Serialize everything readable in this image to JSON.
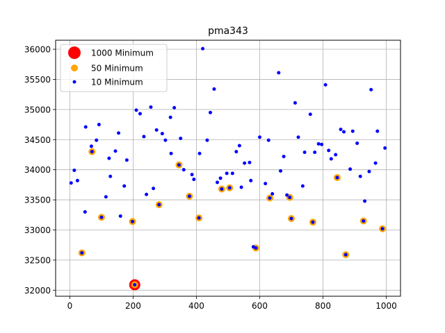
{
  "colors": {
    "min1000": "#ff0000",
    "min50": "#ffa500",
    "min10": "#0000ff",
    "grid": "#b0b0b0"
  },
  "chart_data": {
    "type": "scatter",
    "title": "pma343",
    "xlabel": "",
    "ylabel": "",
    "xlim": [
      -45,
      1045
    ],
    "ylim": [
      31900,
      36150
    ],
    "xticks": [
      0,
      200,
      400,
      600,
      800,
      1000
    ],
    "yticks": [
      32000,
      32500,
      33000,
      33500,
      34000,
      34500,
      35000,
      35500,
      36000
    ],
    "grid": true,
    "legend": "top-left",
    "series": [
      {
        "name": "1000 Minimum",
        "color": "#ff0000",
        "marker_size": "large",
        "points": [
          [
            205,
            32090
          ]
        ]
      },
      {
        "name": "50 Minimum",
        "color": "#ffa500",
        "marker_size": "medium",
        "points": [
          [
            38,
            32620
          ],
          [
            70,
            34300
          ],
          [
            100,
            33210
          ],
          [
            198,
            33140
          ],
          [
            205,
            32090
          ],
          [
            282,
            33420
          ],
          [
            345,
            34080
          ],
          [
            378,
            33560
          ],
          [
            408,
            33200
          ],
          [
            480,
            33680
          ],
          [
            505,
            33700
          ],
          [
            588,
            32700
          ],
          [
            632,
            33530
          ],
          [
            695,
            33540
          ],
          [
            700,
            33190
          ],
          [
            768,
            33130
          ],
          [
            845,
            33870
          ],
          [
            872,
            32590
          ],
          [
            928,
            33150
          ],
          [
            988,
            33020
          ]
        ]
      },
      {
        "name": "10 Minimum",
        "color": "#0000ff",
        "marker_size": "small",
        "points": [
          [
            4,
            33780
          ],
          [
            14,
            33990
          ],
          [
            24,
            33820
          ],
          [
            38,
            32620
          ],
          [
            48,
            33300
          ],
          [
            50,
            34710
          ],
          [
            68,
            34390
          ],
          [
            70,
            34300
          ],
          [
            84,
            34490
          ],
          [
            92,
            34750
          ],
          [
            100,
            33210
          ],
          [
            114,
            33550
          ],
          [
            124,
            34190
          ],
          [
            128,
            33890
          ],
          [
            144,
            34310
          ],
          [
            154,
            34610
          ],
          [
            160,
            33230
          ],
          [
            172,
            33730
          ],
          [
            180,
            34160
          ],
          [
            198,
            33140
          ],
          [
            205,
            32090
          ],
          [
            210,
            34990
          ],
          [
            222,
            34930
          ],
          [
            234,
            34550
          ],
          [
            242,
            33590
          ],
          [
            256,
            35040
          ],
          [
            264,
            33690
          ],
          [
            274,
            34660
          ],
          [
            282,
            33420
          ],
          [
            292,
            34600
          ],
          [
            302,
            34490
          ],
          [
            318,
            34870
          ],
          [
            320,
            34270
          ],
          [
            330,
            35030
          ],
          [
            345,
            34080
          ],
          [
            350,
            34520
          ],
          [
            360,
            34000
          ],
          [
            378,
            33560
          ],
          [
            386,
            33920
          ],
          [
            392,
            33840
          ],
          [
            408,
            33200
          ],
          [
            410,
            34270
          ],
          [
            420,
            36010
          ],
          [
            434,
            34490
          ],
          [
            444,
            34950
          ],
          [
            456,
            35340
          ],
          [
            466,
            33790
          ],
          [
            476,
            33860
          ],
          [
            480,
            33680
          ],
          [
            496,
            33940
          ],
          [
            505,
            33700
          ],
          [
            514,
            33940
          ],
          [
            526,
            34300
          ],
          [
            536,
            34400
          ],
          [
            542,
            33710
          ],
          [
            552,
            34110
          ],
          [
            568,
            34120
          ],
          [
            572,
            33820
          ],
          [
            580,
            32720
          ],
          [
            588,
            32700
          ],
          [
            600,
            34540
          ],
          [
            618,
            33770
          ],
          [
            628,
            34490
          ],
          [
            632,
            33530
          ],
          [
            640,
            33600
          ],
          [
            660,
            35610
          ],
          [
            666,
            33980
          ],
          [
            676,
            34220
          ],
          [
            686,
            33580
          ],
          [
            695,
            33540
          ],
          [
            700,
            33190
          ],
          [
            712,
            35110
          ],
          [
            722,
            34540
          ],
          [
            736,
            33730
          ],
          [
            742,
            34290
          ],
          [
            760,
            34920
          ],
          [
            768,
            33130
          ],
          [
            774,
            34290
          ],
          [
            786,
            34430
          ],
          [
            796,
            34420
          ],
          [
            808,
            35410
          ],
          [
            818,
            34320
          ],
          [
            826,
            34180
          ],
          [
            840,
            34250
          ],
          [
            845,
            33870
          ],
          [
            856,
            34670
          ],
          [
            866,
            34630
          ],
          [
            872,
            32590
          ],
          [
            886,
            34010
          ],
          [
            894,
            34640
          ],
          [
            908,
            34440
          ],
          [
            918,
            33890
          ],
          [
            928,
            33150
          ],
          [
            932,
            33480
          ],
          [
            946,
            33970
          ],
          [
            952,
            35330
          ],
          [
            966,
            34110
          ],
          [
            972,
            34640
          ],
          [
            988,
            33020
          ],
          [
            996,
            34360
          ]
        ]
      }
    ]
  }
}
